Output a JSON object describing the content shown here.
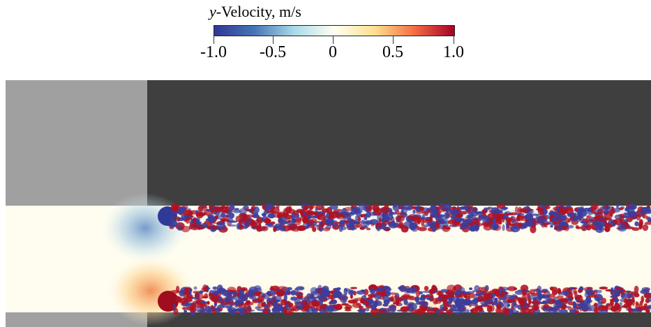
{
  "legend": {
    "variable": "y",
    "title_rest": "-Velocity, m/s",
    "ticks": [
      "-1.0",
      "-0.5",
      "0",
      "0.5",
      "1.0"
    ],
    "range": [
      -1.0,
      1.0
    ],
    "colormap": [
      "#313695",
      "#4575b4",
      "#abd9e9",
      "#fffff2",
      "#fee090",
      "#f46d43",
      "#a50026"
    ]
  },
  "colors": {
    "solid_light": "#a0a0a0",
    "solid_dark": "#3f3f3f",
    "fluid_background": "#fffdf0",
    "negative": "#3a3e9e",
    "positive": "#b01122"
  }
}
